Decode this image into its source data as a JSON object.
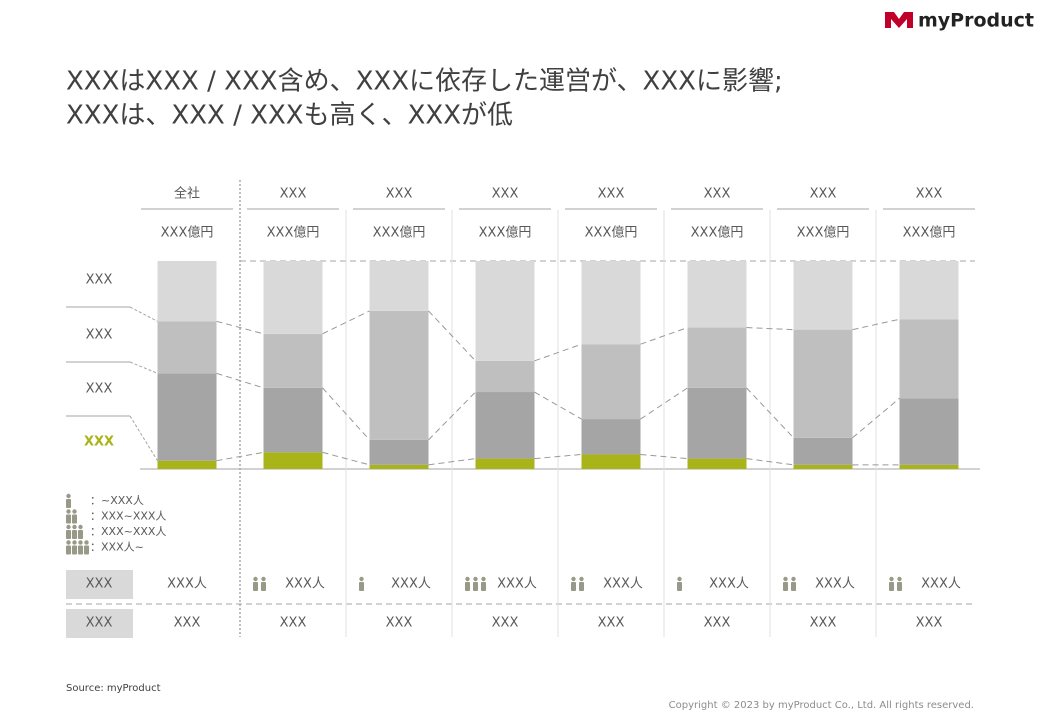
{
  "header": {
    "logo": "myProduct",
    "title_lines": [
      "XXXはXXX / XXX含め、XXXに依存した運営が、XXXに影響;",
      "XXXは、XXX / XXXも高く、XXXが低"
    ]
  },
  "chart_data": {
    "type": "stacked_bar",
    "categories": [
      "全社",
      "XXX",
      "XXX",
      "XXX",
      "XXX",
      "XXX",
      "XXX",
      "XXX"
    ],
    "category_totals": [
      "XXX億円",
      "XXX億円",
      "XXX億円",
      "XXX億円",
      "XXX億円",
      "XXX億円",
      "XXX億円",
      "XXX億円"
    ],
    "series": [
      {
        "name": "XXX",
        "color": "#a9b418",
        "values": [
          4,
          8,
          2,
          5,
          7,
          5,
          2,
          2
        ]
      },
      {
        "name": "XXX",
        "color": "#a5a5a5",
        "values": [
          42,
          31,
          12,
          32,
          17,
          34,
          13,
          32
        ]
      },
      {
        "name": "XXX",
        "color": "#bfbfbf",
        "values": [
          25,
          26,
          62,
          15,
          36,
          29,
          52,
          38
        ]
      },
      {
        "name": "XXX",
        "color": "#d9d9d9",
        "values": [
          29,
          35,
          24,
          48,
          40,
          32,
          33,
          28
        ]
      }
    ],
    "ylim": [
      0,
      100
    ]
  },
  "icon_legend": [
    {
      "icons": 1,
      "label": "：~XXX人"
    },
    {
      "icons": 2,
      "label": "：XXX~XXX人"
    },
    {
      "icons": 3,
      "label": "：XXX~XXX人"
    },
    {
      "icons": 4,
      "label": "：XXX人~"
    }
  ],
  "table": {
    "rows": [
      {
        "header": "XXX",
        "cells": [
          "XXX人",
          "XXX人",
          "XXX人",
          "XXX人",
          "XXX人",
          "XXX人",
          "XXX人",
          "XXX人"
        ],
        "icons": [
          null,
          2,
          1,
          3,
          2,
          1,
          2,
          2
        ]
      },
      {
        "header": "XXX",
        "cells": [
          "XXX",
          "XXX",
          "XXX",
          "XXX",
          "XXX",
          "XXX",
          "XXX",
          "XXX"
        ]
      }
    ]
  },
  "footer": {
    "source": "Source: myProduct",
    "copyright": "Copyright © 2023 by myProduct Co., Ltd.  All rights reserved."
  }
}
